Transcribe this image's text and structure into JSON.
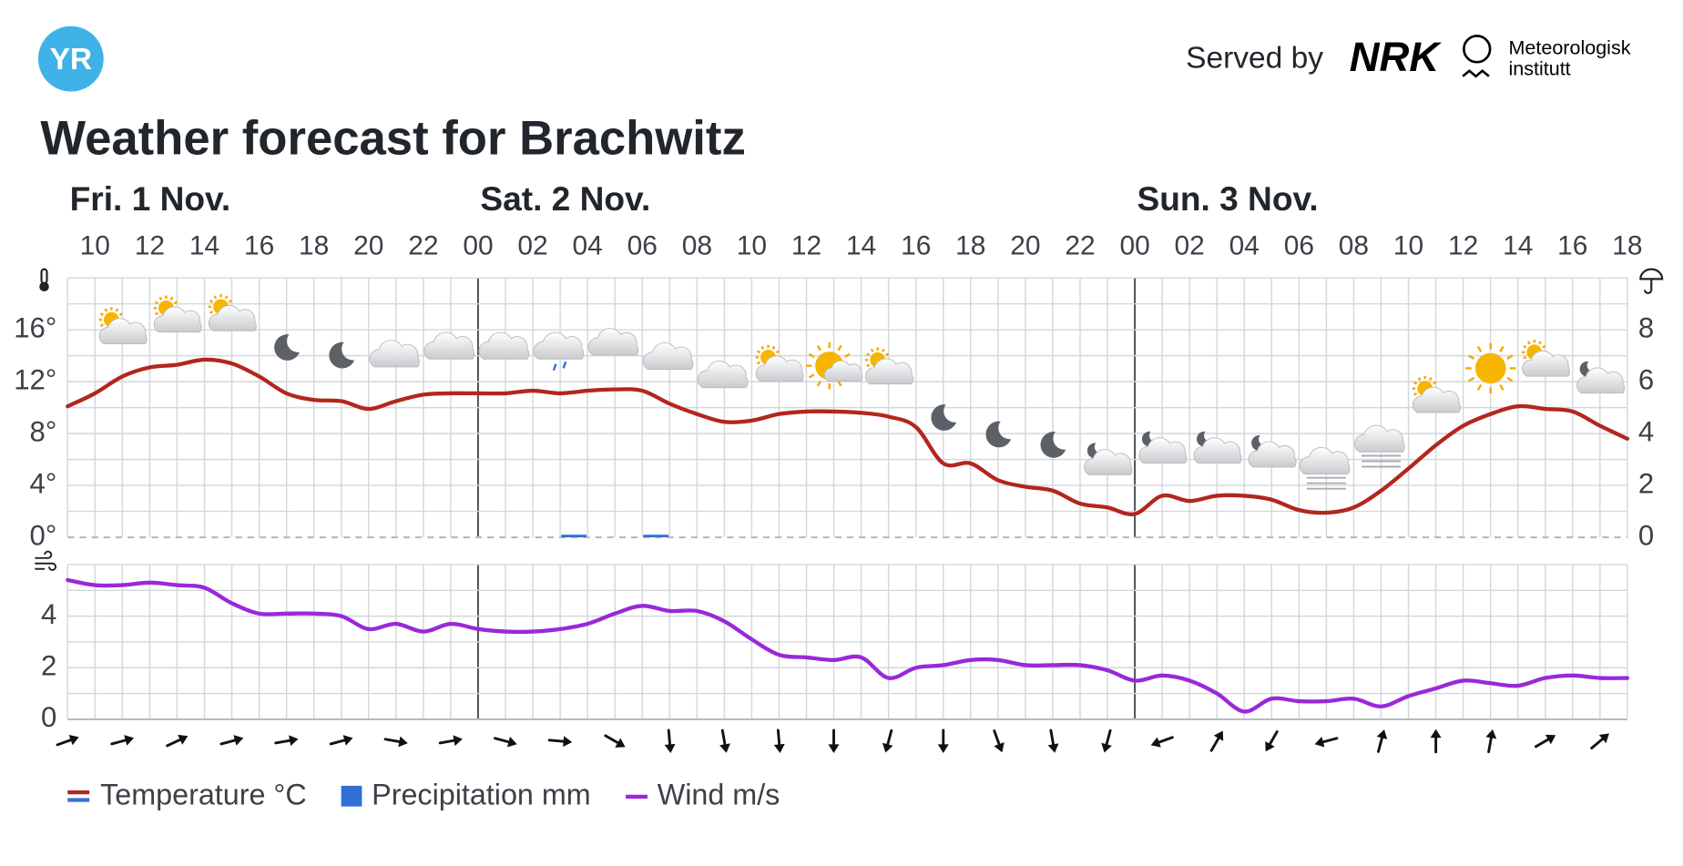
{
  "header": {
    "logo": "YR",
    "served_by": "Served by",
    "nrk": "NRK",
    "met": [
      "Meteorologisk",
      "institutt"
    ]
  },
  "chart_data": [
    {
      "type": "line",
      "title": "Weather forecast for Brachwitz",
      "days": [
        "Fri. 1 Nov.",
        "Sat. 2 Nov.",
        "Sun. 3 Nov."
      ],
      "categories": [
        null,
        "10",
        null,
        "12",
        null,
        "14",
        null,
        "16",
        null,
        "18",
        null,
        "20",
        null,
        "22",
        null,
        "00",
        null,
        "02",
        null,
        "04",
        null,
        "06",
        null,
        "08",
        null,
        "10",
        null,
        "12",
        null,
        "14",
        null,
        "16",
        null,
        "18",
        null,
        "20",
        null,
        "22",
        null,
        "00",
        null,
        "02",
        null,
        "04",
        null,
        "06",
        null,
        "08",
        null,
        "10",
        null,
        "12",
        null,
        "14",
        null,
        "16",
        null,
        "18"
      ],
      "series": [
        {
          "name": "Temperature °C",
          "color": "#b3261e",
          "values": [
            10.1,
            11.1,
            12.4,
            13.1,
            13.3,
            13.7,
            13.4,
            12.4,
            11.1,
            10.6,
            10.5,
            9.9,
            10.5,
            11.0,
            11.1,
            11.1,
            11.1,
            11.3,
            11.1,
            11.3,
            11.4,
            11.3,
            10.3,
            9.5,
            8.9,
            9.0,
            9.5,
            9.7,
            9.7,
            9.6,
            9.3,
            8.5,
            5.7,
            5.7,
            4.4,
            3.9,
            3.6,
            2.6,
            2.3,
            1.8,
            3.2,
            2.8,
            3.2,
            3.2,
            2.9,
            2.1,
            1.9,
            2.3,
            3.6,
            5.3,
            7.1,
            8.6,
            9.5,
            10.1,
            9.9,
            9.7,
            8.6,
            7.6
          ]
        },
        {
          "name": "Precipitation mm",
          "type": "bar",
          "axis": "y2",
          "color": "#2f6fd6",
          "values": [
            0,
            0,
            0,
            0,
            0,
            0,
            0,
            0,
            0,
            0,
            0,
            0,
            0,
            0,
            0,
            0,
            0,
            0,
            0.1,
            0,
            0,
            0.1,
            0,
            0,
            0,
            0,
            0,
            0,
            0,
            0,
            0,
            0,
            0,
            0,
            0,
            0,
            0,
            0,
            0,
            0,
            0,
            0,
            0,
            0,
            0,
            0,
            0,
            0,
            0,
            0,
            0,
            0,
            0,
            0,
            0,
            0,
            0,
            0
          ]
        }
      ],
      "ylim": [
        0,
        20
      ],
      "yticks": [
        {
          "value": 0,
          "label": "0°"
        },
        {
          "value": 4,
          "label": "4°"
        },
        {
          "value": 8,
          "label": "8°"
        },
        {
          "value": 12,
          "label": "12°"
        },
        {
          "value": 16,
          "label": "16°"
        }
      ],
      "y2lim": [
        0,
        10
      ],
      "y2ticks": [
        0,
        2,
        4,
        6,
        8
      ],
      "grid": true
    },
    {
      "type": "line",
      "series": [
        {
          "name": "Wind m/s",
          "color": "#9a28d9",
          "values": [
            5.4,
            5.2,
            5.2,
            5.3,
            5.2,
            5.1,
            4.5,
            4.1,
            4.1,
            4.1,
            4.0,
            3.5,
            3.7,
            3.4,
            3.7,
            3.5,
            3.4,
            3.4,
            3.5,
            3.7,
            4.1,
            4.4,
            4.2,
            4.2,
            3.8,
            3.1,
            2.5,
            2.4,
            2.3,
            2.4,
            1.6,
            2.0,
            2.1,
            2.3,
            2.3,
            2.1,
            2.1,
            2.1,
            1.9,
            1.5,
            1.7,
            1.5,
            1.0,
            0.3,
            0.8,
            0.7,
            0.7,
            0.8,
            0.5,
            0.9,
            1.2,
            1.5,
            1.4,
            1.3,
            1.6,
            1.7,
            1.6,
            1.6
          ]
        }
      ],
      "wind_direction": [
        250,
        255,
        245,
        255,
        260,
        255,
        280,
        260,
        285,
        275,
        300,
        355,
        350,
        355,
        0,
        15,
        0,
        340,
        350,
        15,
        70,
        210,
        30,
        75,
        195,
        180,
        190,
        240,
        230
      ],
      "ylim": [
        0,
        6
      ],
      "yticks": [
        0,
        2,
        4
      ],
      "grid": true
    }
  ]
}
